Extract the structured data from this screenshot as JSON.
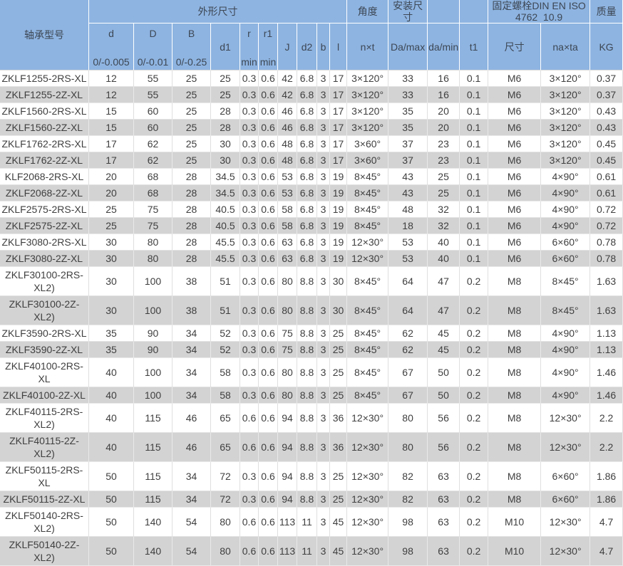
{
  "header": {
    "model": "轴承型号",
    "dims_group": "外形尺寸",
    "angle_group": "角度",
    "mount_group": "安装尺寸",
    "bolt_line1": "固定螺栓DIN EN ISO",
    "bolt_line2": "4762  10.9",
    "mass_group": "质量",
    "cols": [
      {
        "id": "d",
        "label": "d",
        "tol": "0/-0.005"
      },
      {
        "id": "D",
        "label": "D",
        "tol": "0/-0.01"
      },
      {
        "id": "B",
        "label": "B",
        "tol": "0/-0.25"
      },
      {
        "id": "d1",
        "label": "d1",
        "tol": ""
      },
      {
        "id": "r",
        "label": "r",
        "tol": "min"
      },
      {
        "id": "r1",
        "label": "r1",
        "tol": "min"
      },
      {
        "id": "J",
        "label": "J",
        "tol": ""
      },
      {
        "id": "d2",
        "label": "d2",
        "tol": ""
      },
      {
        "id": "b",
        "label": "b",
        "tol": ""
      },
      {
        "id": "l",
        "label": "l",
        "tol": ""
      },
      {
        "id": "nxt",
        "label": "n×t",
        "tol": ""
      },
      {
        "id": "Da_max",
        "label": "Da/max",
        "tol": ""
      },
      {
        "id": "da_min",
        "label": "da/min",
        "tol": ""
      },
      {
        "id": "t1",
        "label": "t1",
        "tol": ""
      },
      {
        "id": "size",
        "label": "尺寸",
        "tol": ""
      },
      {
        "id": "naxta",
        "label": "na×ta",
        "tol": ""
      },
      {
        "id": "kg",
        "label": "KG",
        "tol": ""
      }
    ]
  },
  "column_ids": [
    "model",
    "d",
    "D",
    "B",
    "d1",
    "r",
    "r1",
    "J",
    "d2",
    "b",
    "l",
    "nxt",
    "Da_max",
    "da_min",
    "t1",
    "size",
    "naxta",
    "kg"
  ],
  "rows": [
    [
      "ZKLF1255-2RS-XL",
      "12",
      "55",
      "25",
      "25",
      "0.3",
      "0.6",
      "42",
      "6.8",
      "3",
      "17",
      "3×120°",
      "33",
      "16",
      "0.1",
      "M6",
      "3×120°",
      "0.37"
    ],
    [
      "ZKLF1255-2Z-XL",
      "12",
      "55",
      "25",
      "25",
      "0.3",
      "0.6",
      "42",
      "6.8",
      "3",
      "17",
      "3×120°",
      "33",
      "16",
      "0.1",
      "M6",
      "3×120°",
      "0.37"
    ],
    [
      "ZKLF1560-2RS-XL",
      "15",
      "60",
      "25",
      "28",
      "0.3",
      "0.6",
      "46",
      "6.8",
      "3",
      "17",
      "3×120°",
      "35",
      "20",
      "0.1",
      "M6",
      "3×120°",
      "0.43"
    ],
    [
      "ZKLF1560-2Z-XL",
      "15",
      "60",
      "25",
      "28",
      "0.3",
      "0.6",
      "46",
      "6.8",
      "3",
      "17",
      "3×120°",
      "35",
      "20",
      "0.1",
      "M6",
      "3×120°",
      "0.43"
    ],
    [
      "ZKLF1762-2RS-XL",
      "17",
      "62",
      "25",
      "30",
      "0.3",
      "0.6",
      "48",
      "6.8",
      "3",
      "17",
      "3×60°",
      "37",
      "23",
      "0.1",
      "M6",
      "3×120°",
      "0.45"
    ],
    [
      "ZKLF1762-2Z-XL",
      "17",
      "62",
      "25",
      "30",
      "0.3",
      "0.6",
      "48",
      "6.8",
      "3",
      "17",
      "3×60°",
      "37",
      "23",
      "0.1",
      "M6",
      "3×120°",
      "0.45"
    ],
    [
      "KLF2068-2RS-XL",
      "20",
      "68",
      "28",
      "34.5",
      "0.3",
      "0.6",
      "53",
      "6.8",
      "3",
      "19",
      "8×45°",
      "43",
      "25",
      "0.1",
      "M6",
      "4×90°",
      "0.61"
    ],
    [
      "ZKLF2068-2Z-XL",
      "20",
      "68",
      "28",
      "34.5",
      "0.3",
      "0.6",
      "53",
      "6.8",
      "3",
      "19",
      "8×45°",
      "43",
      "25",
      "0.1",
      "M6",
      "4×90°",
      "0.61"
    ],
    [
      "ZKLF2575-2RS-XL",
      "25",
      "75",
      "28",
      "40.5",
      "0.3",
      "0.6",
      "58",
      "6.8",
      "3",
      "19",
      "8×45°",
      "48",
      "32",
      "0.1",
      "M6",
      "4×90°",
      "0.72"
    ],
    [
      "ZKLF2575-2Z-XL",
      "25",
      "75",
      "28",
      "40.5",
      "0.3",
      "0.6",
      "58",
      "6.8",
      "3",
      "19",
      "8×45°",
      "18",
      "32",
      "0.1",
      "M6",
      "4×90°",
      "0.72"
    ],
    [
      "ZKLF3080-2RS-XL",
      "30",
      "80",
      "28",
      "45.5",
      "0.3",
      "0.6",
      "63",
      "6.8",
      "3",
      "19",
      "12×30°",
      "53",
      "40",
      "0.1",
      "M6",
      "6×60°",
      "0.78"
    ],
    [
      "ZKLF3080-2Z-XL",
      "30",
      "80",
      "28",
      "45.5",
      "0.3",
      "0.6",
      "63",
      "6.8",
      "3",
      "19",
      "12×30°",
      "53",
      "40",
      "0.1",
      "M6",
      "6×60°",
      "0.78"
    ],
    [
      "ZKLF30100-2RS-XL2)",
      "30",
      "100",
      "38",
      "51",
      "0.3",
      "0.6",
      "80",
      "8.8",
      "3",
      "30",
      "8×45°",
      "64",
      "47",
      "0.2",
      "M8",
      "8×45°",
      "1.63"
    ],
    [
      "ZKLF30100-2Z-XL2)",
      "30",
      "100",
      "38",
      "51",
      "0.3",
      "0.6",
      "80",
      "8.8",
      "3",
      "30",
      "8×45°",
      "64",
      "47",
      "0.2",
      "M8",
      "8×45°",
      "1.63"
    ],
    [
      "ZKLF3590-2RS-XL",
      "35",
      "90",
      "34",
      "52",
      "0.3",
      "0.6",
      "75",
      "8.8",
      "3",
      "25",
      "8×45°",
      "62",
      "45",
      "0.2",
      "M8",
      "4×90°",
      "1.13"
    ],
    [
      "ZKLF3590-2Z-XL",
      "35",
      "90",
      "34",
      "52",
      "0.3",
      "0.6",
      "75",
      "8.8",
      "3",
      "25",
      "8×45°",
      "62",
      "45",
      "0.2",
      "M8",
      "4×90°",
      "1.13"
    ],
    [
      "ZKLF40100-2RS-XL",
      "40",
      "100",
      "34",
      "58",
      "0.3",
      "0.6",
      "80",
      "8.8",
      "3",
      "25",
      "8×45°",
      "67",
      "50",
      "0.2",
      "M8",
      "4×90°",
      "1.46"
    ],
    [
      "ZKLF40100-2Z-XL",
      "40",
      "100",
      "34",
      "58",
      "0.3",
      "0.6",
      "80",
      "8.8",
      "3",
      "25",
      "8×45°",
      "67",
      "50",
      "0.2",
      "M8",
      "4×90°",
      "1.46"
    ],
    [
      "ZKLF40115-2RS-XL2)",
      "40",
      "115",
      "46",
      "65",
      "0.6",
      "0.6",
      "94",
      "8.8",
      "3",
      "36",
      "12×30°",
      "80",
      "56",
      "0.2",
      "M8",
      "12×30°",
      "2.2"
    ],
    [
      "ZKLF40115-2Z-XL2)",
      "40",
      "115",
      "46",
      "65",
      "0.6",
      "0.6",
      "94",
      "8.8",
      "3",
      "36",
      "12×30°",
      "80",
      "56",
      "0.2",
      "M8",
      "12×30°",
      "2.2"
    ],
    [
      "ZKLF50115-2RS-XL",
      "50",
      "115",
      "34",
      "72",
      "0.3",
      "0.6",
      "94",
      "8.8",
      "3",
      "25",
      "12×30°",
      "82",
      "63",
      "0.2",
      "M8",
      "6×60°",
      "1.86"
    ],
    [
      "ZKLF50115-2Z-XL",
      "50",
      "115",
      "34",
      "72",
      "0.3",
      "0.6",
      "94",
      "8.8",
      "3",
      "25",
      "12×30°",
      "82",
      "63",
      "0.2",
      "M8",
      "6×60°",
      "1.86"
    ],
    [
      "ZKLF50140-2RS-XL2)",
      "50",
      "140",
      "54",
      "80",
      "0.6",
      "0.6",
      "113",
      "11",
      "3",
      "45",
      "12×30°",
      "98",
      "63",
      "0.2",
      "M10",
      "12×30°",
      "4.7"
    ],
    [
      "ZKLF50140-2Z-XL2)",
      "50",
      "140",
      "54",
      "80",
      "0.6",
      "0.6",
      "113",
      "11",
      "3",
      "45",
      "12×30°",
      "98",
      "63",
      "0.2",
      "M10",
      "12×30°",
      "4.7"
    ]
  ]
}
